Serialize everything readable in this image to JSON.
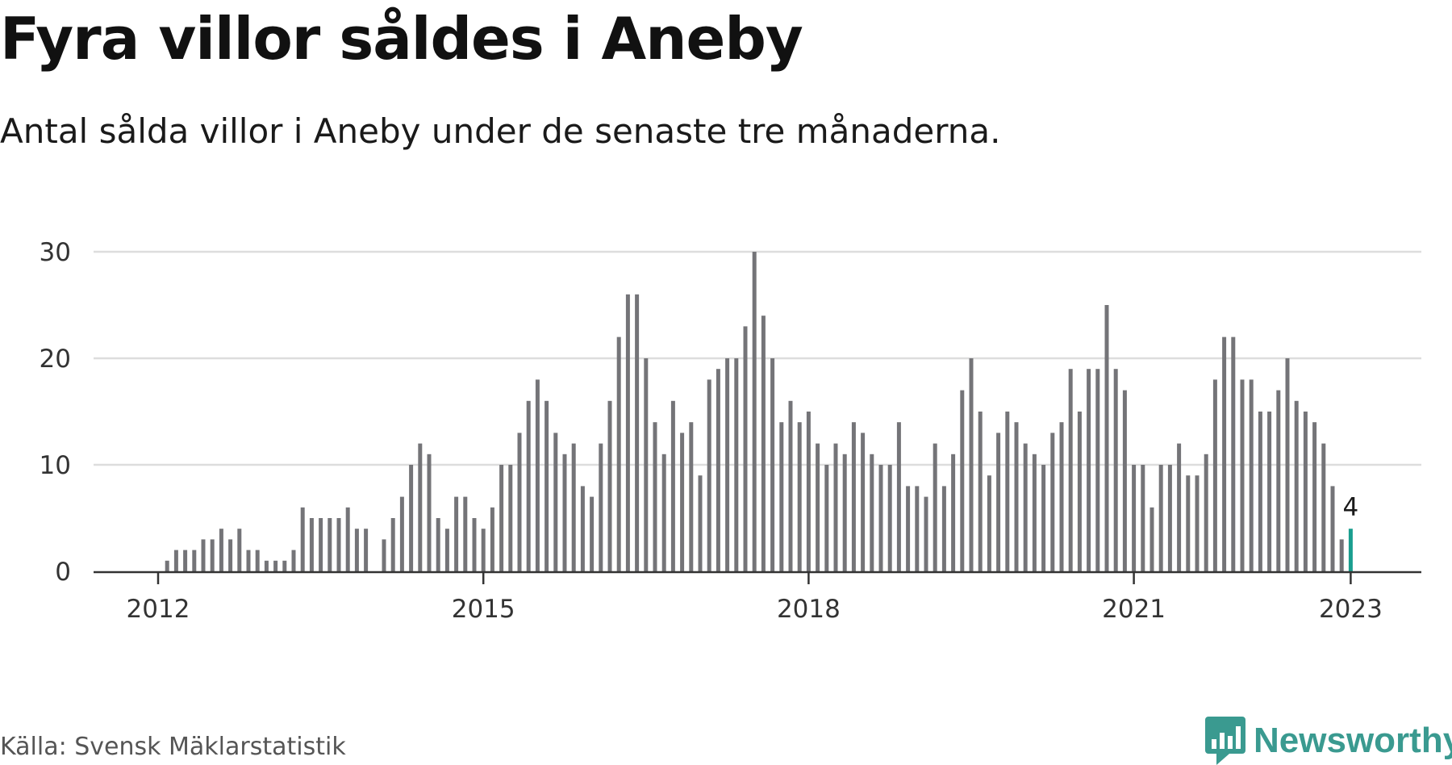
{
  "header": {
    "title": "Fyra villor såldes i Aneby",
    "subtitle": "Antal sålda villor i Aneby under de senaste tre månaderna."
  },
  "footer": {
    "source": "Källa: Svensk Mäklarstatistik",
    "brand": "Newsworthy"
  },
  "colors": {
    "bar": "#747478",
    "highlight": "#1a9e8f",
    "grid": "#dddddd",
    "axis": "#333333",
    "brand": "#3a9a90"
  },
  "chart_data": {
    "type": "bar",
    "title": "Fyra villor såldes i Aneby",
    "subtitle": "Antal sålda villor i Aneby under de senaste tre månaderna.",
    "xlabel": "",
    "ylabel": "",
    "ylim": [
      0,
      30
    ],
    "yticks": [
      0,
      10,
      20,
      30
    ],
    "xticks": [
      {
        "label": "2012",
        "index": 0
      },
      {
        "label": "2015",
        "index": 36
      },
      {
        "label": "2018",
        "index": 72
      },
      {
        "label": "2021",
        "index": 108
      },
      {
        "label": "2023",
        "index": 132
      }
    ],
    "grid": true,
    "legend": "none",
    "start": "2012-01",
    "end": "2023-01",
    "frequency": "monthly",
    "values": [
      0,
      1,
      2,
      2,
      2,
      3,
      3,
      4,
      3,
      4,
      2,
      2,
      1,
      1,
      1,
      2,
      6,
      5,
      5,
      5,
      5,
      6,
      4,
      4,
      0,
      3,
      5,
      7,
      10,
      12,
      11,
      5,
      4,
      7,
      7,
      5,
      4,
      6,
      10,
      10,
      13,
      16,
      18,
      16,
      13,
      11,
      12,
      8,
      7,
      12,
      16,
      22,
      26,
      26,
      20,
      14,
      11,
      16,
      13,
      14,
      9,
      18,
      19,
      20,
      20,
      23,
      30,
      24,
      20,
      14,
      16,
      14,
      15,
      12,
      10,
      12,
      11,
      14,
      13,
      11,
      10,
      10,
      14,
      8,
      8,
      7,
      12,
      8,
      11,
      17,
      20,
      15,
      9,
      13,
      15,
      14,
      12,
      11,
      10,
      13,
      14,
      19,
      15,
      19,
      19,
      25,
      19,
      17,
      10,
      10,
      6,
      10,
      10,
      12,
      9,
      9,
      11,
      18,
      22,
      22,
      18,
      18,
      15,
      15,
      17,
      20,
      16,
      15,
      14,
      12,
      8,
      3,
      4
    ],
    "highlight_index": 132,
    "highlight_label": "4"
  }
}
